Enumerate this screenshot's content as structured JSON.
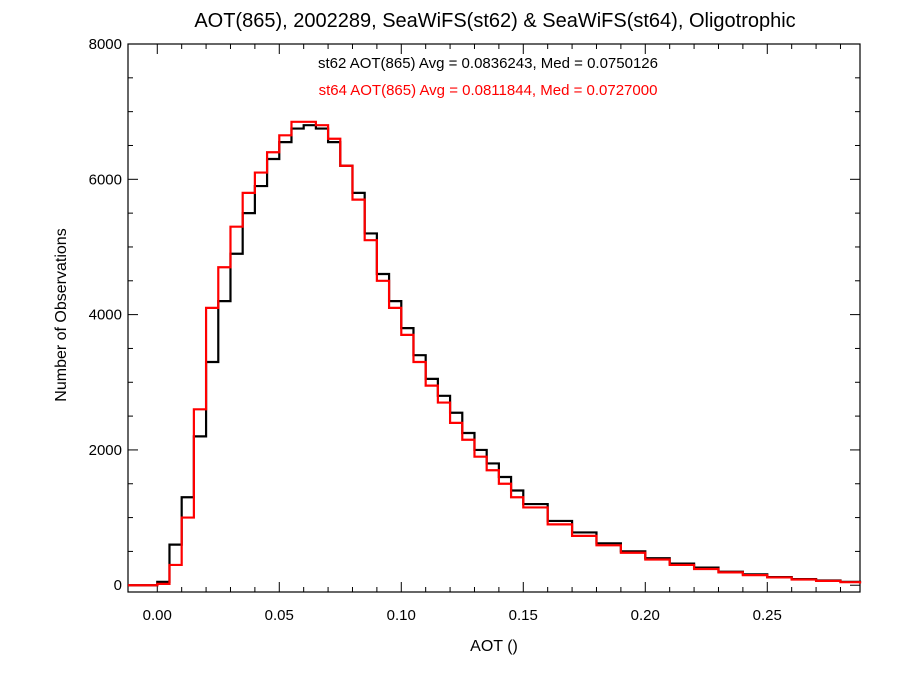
{
  "chart_data": {
    "type": "line",
    "title": "AOT(865), 2002289, SeaWiFS(st62) & SeaWiFS(st64), Oligotrophic",
    "xlabel": "AOT ()",
    "ylabel": "Number of Observations",
    "xlim": [
      -0.012,
      0.288
    ],
    "ylim": [
      -100,
      8000
    ],
    "xticks": [
      0.0,
      0.05,
      0.1,
      0.15,
      0.2,
      0.25
    ],
    "xtick_labels": [
      "0.00",
      "0.05",
      "0.10",
      "0.15",
      "0.20",
      "0.25"
    ],
    "yticks": [
      0,
      2000,
      4000,
      6000,
      8000
    ],
    "ytick_labels": [
      "0",
      "2000",
      "4000",
      "6000",
      "8000"
    ],
    "grid": false,
    "annotations": [
      {
        "text": "st62 AOT(865) Avg = 0.0836243, Med = 0.0750126",
        "color": "#000000"
      },
      {
        "text": "st64 AOT(865) Avg = 0.0811844, Med = 0.0727000",
        "color": "#ff0000"
      }
    ],
    "series": [
      {
        "color": "#000000",
        "x": [
          -0.012,
          0.0,
          0.005,
          0.01,
          0.015,
          0.02,
          0.025,
          0.03,
          0.035,
          0.04,
          0.045,
          0.05,
          0.055,
          0.06,
          0.065,
          0.07,
          0.075,
          0.08,
          0.085,
          0.09,
          0.095,
          0.1,
          0.105,
          0.11,
          0.115,
          0.12,
          0.125,
          0.13,
          0.135,
          0.14,
          0.145,
          0.15,
          0.16,
          0.17,
          0.18,
          0.19,
          0.2,
          0.21,
          0.22,
          0.23,
          0.24,
          0.25,
          0.26,
          0.27,
          0.28,
          0.288
        ],
        "y": [
          0,
          50,
          600,
          1300,
          2200,
          3300,
          4200,
          4900,
          5500,
          5900,
          6300,
          6550,
          6750,
          6800,
          6750,
          6550,
          6200,
          5800,
          5200,
          4600,
          4200,
          3800,
          3400,
          3050,
          2800,
          2550,
          2250,
          2000,
          1800,
          1600,
          1400,
          1200,
          950,
          780,
          620,
          500,
          400,
          320,
          260,
          200,
          160,
          120,
          90,
          70,
          50,
          30
        ]
      },
      {
        "color": "#ff0000",
        "x": [
          -0.012,
          0.0,
          0.005,
          0.01,
          0.015,
          0.02,
          0.025,
          0.03,
          0.035,
          0.04,
          0.045,
          0.05,
          0.055,
          0.06,
          0.065,
          0.07,
          0.075,
          0.08,
          0.085,
          0.09,
          0.095,
          0.1,
          0.105,
          0.11,
          0.115,
          0.12,
          0.125,
          0.13,
          0.135,
          0.14,
          0.145,
          0.15,
          0.16,
          0.17,
          0.18,
          0.19,
          0.2,
          0.21,
          0.22,
          0.23,
          0.24,
          0.25,
          0.26,
          0.27,
          0.28,
          0.288
        ],
        "y": [
          0,
          20,
          300,
          1000,
          2600,
          4100,
          4700,
          5300,
          5800,
          6100,
          6400,
          6650,
          6850,
          6850,
          6800,
          6600,
          6200,
          5700,
          5100,
          4500,
          4100,
          3700,
          3300,
          2950,
          2700,
          2400,
          2150,
          1900,
          1700,
          1500,
          1300,
          1150,
          900,
          730,
          590,
          480,
          380,
          300,
          240,
          190,
          150,
          115,
          85,
          65,
          45,
          25
        ]
      }
    ]
  }
}
